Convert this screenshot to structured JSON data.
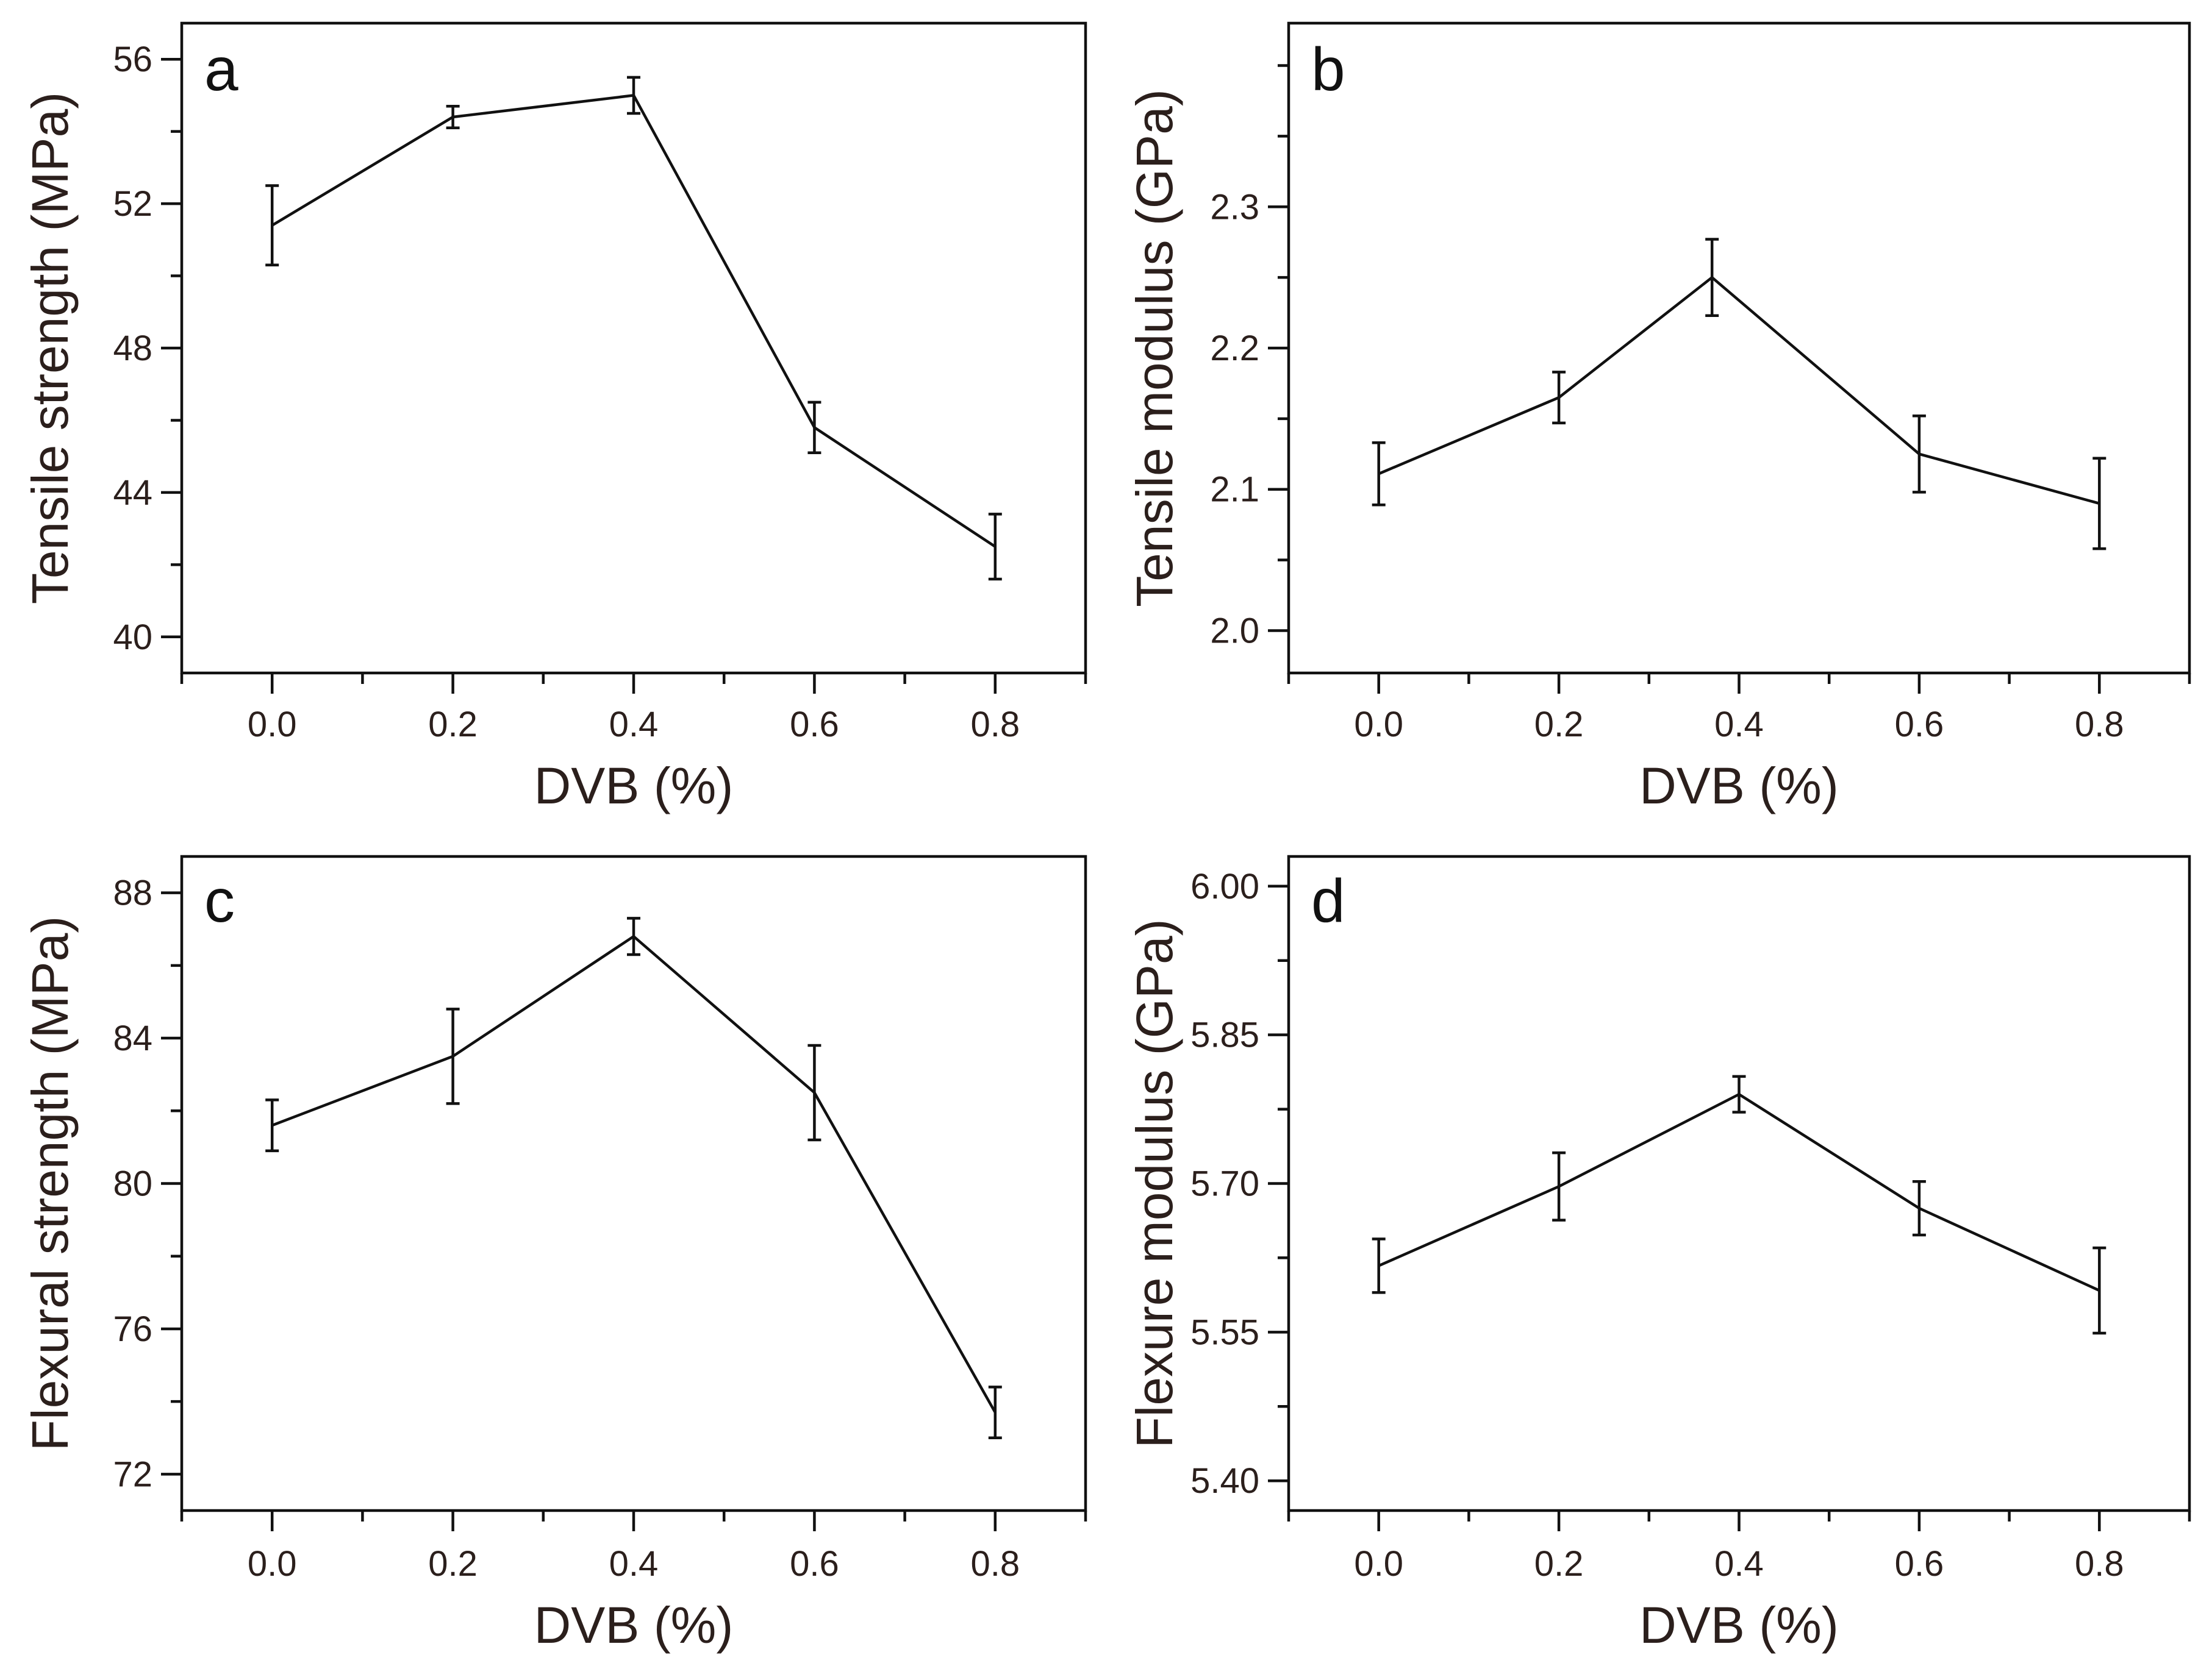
{
  "chart_data": [
    {
      "panel": "a",
      "type": "line",
      "xlabel": "DVB (%)",
      "ylabel": "Tensile strength (MPa)",
      "xlim": [
        -0.1,
        0.9
      ],
      "ylim": [
        39,
        57
      ],
      "x_ticks": [
        0.0,
        0.2,
        0.4,
        0.6,
        0.8
      ],
      "x_tick_labels": [
        "0.0",
        "0.2",
        "0.4",
        "0.6",
        "0.8"
      ],
      "y_major_ticks": [
        40,
        44,
        48,
        52,
        56
      ],
      "y_tick_labels": [
        "40",
        "44",
        "48",
        "52",
        "56"
      ],
      "y_minor_ticks": [
        42,
        46,
        50,
        54
      ],
      "series": [
        {
          "name": "Tensile strength",
          "x": [
            0.0,
            0.2,
            0.4,
            0.6,
            0.8
          ],
          "y": [
            51.4,
            54.4,
            55.0,
            45.8,
            42.5
          ],
          "error": [
            1.1,
            0.3,
            0.5,
            0.7,
            0.9
          ]
        }
      ]
    },
    {
      "panel": "b",
      "type": "line",
      "xlabel": "DVB (%)",
      "ylabel": "Tensile modulus (GPa)",
      "xlim": [
        -0.1,
        0.9
      ],
      "ylim": [
        1.97,
        2.43
      ],
      "x_ticks": [
        0.0,
        0.2,
        0.4,
        0.6,
        0.8
      ],
      "x_tick_labels": [
        "0.0",
        "0.2",
        "0.4",
        "0.6",
        "0.8"
      ],
      "y_major_ticks": [
        2.0,
        2.1,
        2.2,
        2.3
      ],
      "y_tick_labels": [
        "2.0",
        "2.1",
        "2.2",
        "2.3"
      ],
      "y_minor_ticks": [
        2.05,
        2.15,
        2.25,
        2.35,
        2.4
      ],
      "series": [
        {
          "name": "Tensile modulus",
          "x": [
            0.0,
            0.2,
            0.37,
            0.6,
            0.8
          ],
          "y": [
            2.111,
            2.165,
            2.25,
            2.125,
            2.09
          ],
          "error": [
            0.022,
            0.018,
            0.027,
            0.027,
            0.032
          ]
        }
      ]
    },
    {
      "panel": "c",
      "type": "line",
      "xlabel": "DVB (%)",
      "ylabel": "Flexural strength (MPa)",
      "xlim": [
        -0.1,
        0.9
      ],
      "ylim": [
        71,
        89
      ],
      "x_ticks": [
        0.0,
        0.2,
        0.4,
        0.6,
        0.8
      ],
      "x_tick_labels": [
        "0.0",
        "0.2",
        "0.4",
        "0.6",
        "0.8"
      ],
      "y_major_ticks": [
        72,
        76,
        80,
        84,
        88
      ],
      "y_tick_labels": [
        "72",
        "76",
        "80",
        "84",
        "88"
      ],
      "y_minor_ticks": [
        74,
        78,
        82,
        86
      ],
      "series": [
        {
          "name": "Flexural strength",
          "x": [
            0.0,
            0.2,
            0.4,
            0.6,
            0.8
          ],
          "y": [
            81.6,
            83.5,
            86.8,
            82.5,
            73.7
          ],
          "error": [
            0.7,
            1.3,
            0.5,
            1.3,
            0.7
          ]
        }
      ]
    },
    {
      "panel": "d",
      "type": "line",
      "xlabel": "DVB (%)",
      "ylabel": "Flexure modulus (GPa)",
      "xlim": [
        -0.1,
        0.9
      ],
      "ylim": [
        5.37,
        6.03
      ],
      "x_ticks": [
        0.0,
        0.2,
        0.4,
        0.6,
        0.8
      ],
      "x_tick_labels": [
        "0.0",
        "0.2",
        "0.4",
        "0.6",
        "0.8"
      ],
      "y_major_ticks": [
        5.4,
        5.55,
        5.7,
        5.85,
        6.0
      ],
      "y_tick_labels": [
        "5.40",
        "5.55",
        "5.70",
        "5.85",
        "6.00"
      ],
      "y_minor_ticks": [
        5.475,
        5.625,
        5.775,
        5.925
      ],
      "series": [
        {
          "name": "Flexure modulus",
          "x": [
            0.0,
            0.2,
            0.4,
            0.6,
            0.8
          ],
          "y": [
            5.617,
            5.697,
            5.79,
            5.675,
            5.592
          ],
          "error": [
            0.027,
            0.034,
            0.018,
            0.027,
            0.043
          ]
        }
      ]
    }
  ]
}
